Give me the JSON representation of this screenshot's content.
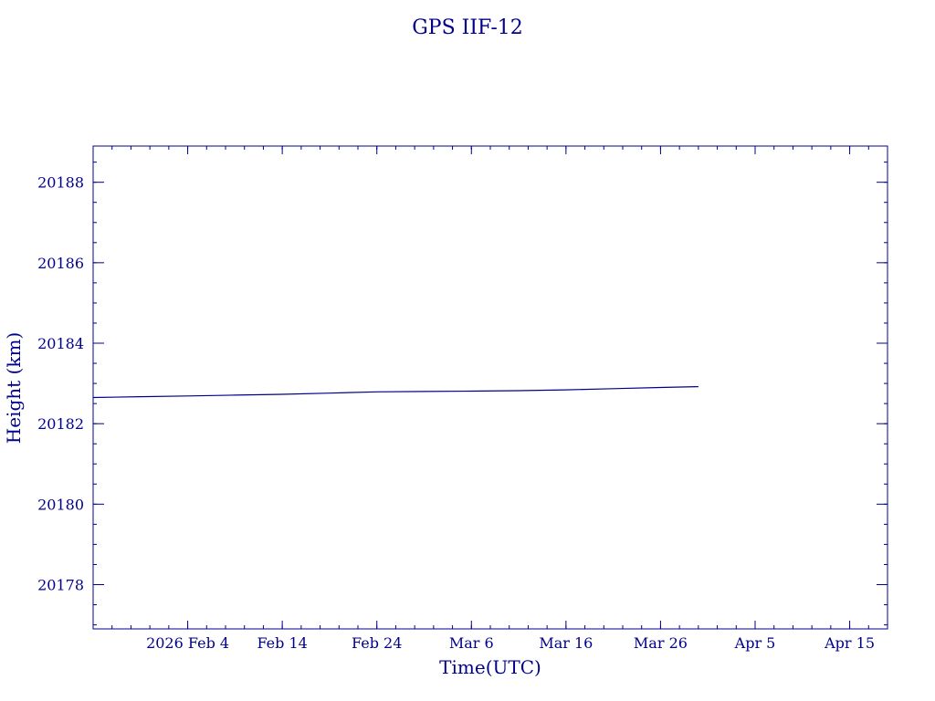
{
  "chart_data": {
    "type": "line",
    "title": "GPS IIF-12",
    "xlabel": "Time(UTC)",
    "ylabel": "Height (km)",
    "x_tick_labels": [
      "2026 Feb  4",
      "Feb 14",
      "Feb 24",
      "Mar  6",
      "Mar 16",
      "Mar 26",
      "Apr  5",
      "Apr 15"
    ],
    "x_tick_dates": [
      "2026-02-04",
      "2026-02-14",
      "2026-02-24",
      "2026-03-06",
      "2026-03-16",
      "2026-03-26",
      "2026-04-05",
      "2026-04-15"
    ],
    "y_tick_labels": [
      "20178",
      "20180",
      "20182",
      "20184",
      "20186",
      "20188"
    ],
    "xlim": [
      "2026-01-25",
      "2026-04-19"
    ],
    "ylim": [
      20176.9,
      20188.9
    ],
    "grid": false,
    "series": [
      {
        "x": [
          "2026-01-25",
          "2026-01-30",
          "2026-02-04",
          "2026-02-09",
          "2026-02-14",
          "2026-02-19",
          "2026-02-24",
          "2026-03-01",
          "2026-03-06",
          "2026-03-11",
          "2026-03-16",
          "2026-03-21",
          "2026-03-26",
          "2026-03-30"
        ],
        "y": [
          20182.65,
          20182.67,
          20182.69,
          20182.71,
          20182.73,
          20182.76,
          20182.79,
          20182.8,
          20182.81,
          20182.82,
          20182.84,
          20182.87,
          20182.9,
          20182.92
        ]
      }
    ],
    "colors": {
      "axis": "#00008b",
      "line": "#00008b"
    }
  }
}
